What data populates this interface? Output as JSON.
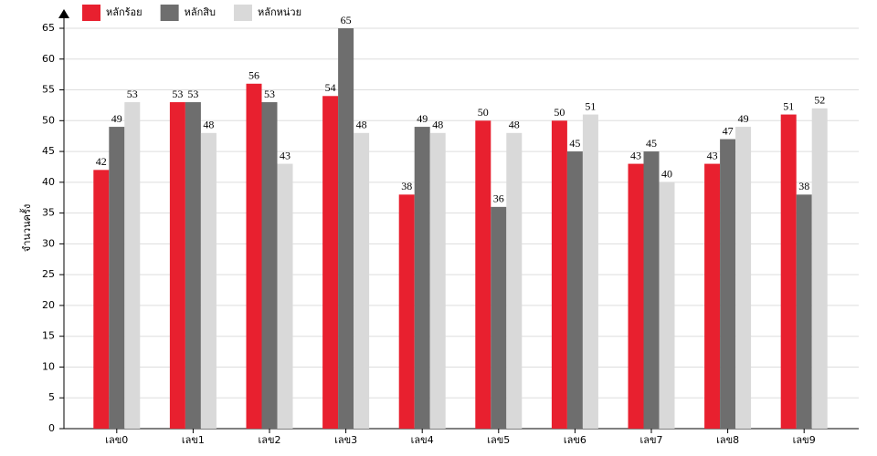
{
  "chart_data": {
    "type": "bar",
    "y_label": "จำนวนครั้ง",
    "categories": [
      "เลข0",
      "เลข1",
      "เลข2",
      "เลข3",
      "เลข4",
      "เลข5",
      "เลข6",
      "เลข7",
      "เลข8",
      "เลข9"
    ],
    "series": [
      {
        "name": "หลักร้อย",
        "color": "#e8202f",
        "values": [
          42,
          53,
          56,
          54,
          38,
          50,
          50,
          43,
          43,
          51
        ]
      },
      {
        "name": "หลักสิบ",
        "color": "#6e6e6e",
        "values": [
          49,
          53,
          53,
          65,
          49,
          36,
          45,
          45,
          47,
          38
        ]
      },
      {
        "name": "หลักหน่วย",
        "color": "#d9d9d9",
        "values": [
          53,
          48,
          43,
          48,
          48,
          48,
          51,
          40,
          49,
          52
        ]
      }
    ],
    "ylim": [
      0,
      65
    ],
    "yticks": [
      0,
      5,
      10,
      15,
      20,
      25,
      30,
      35,
      40,
      45,
      50,
      55,
      60,
      65
    ],
    "grid": true
  }
}
